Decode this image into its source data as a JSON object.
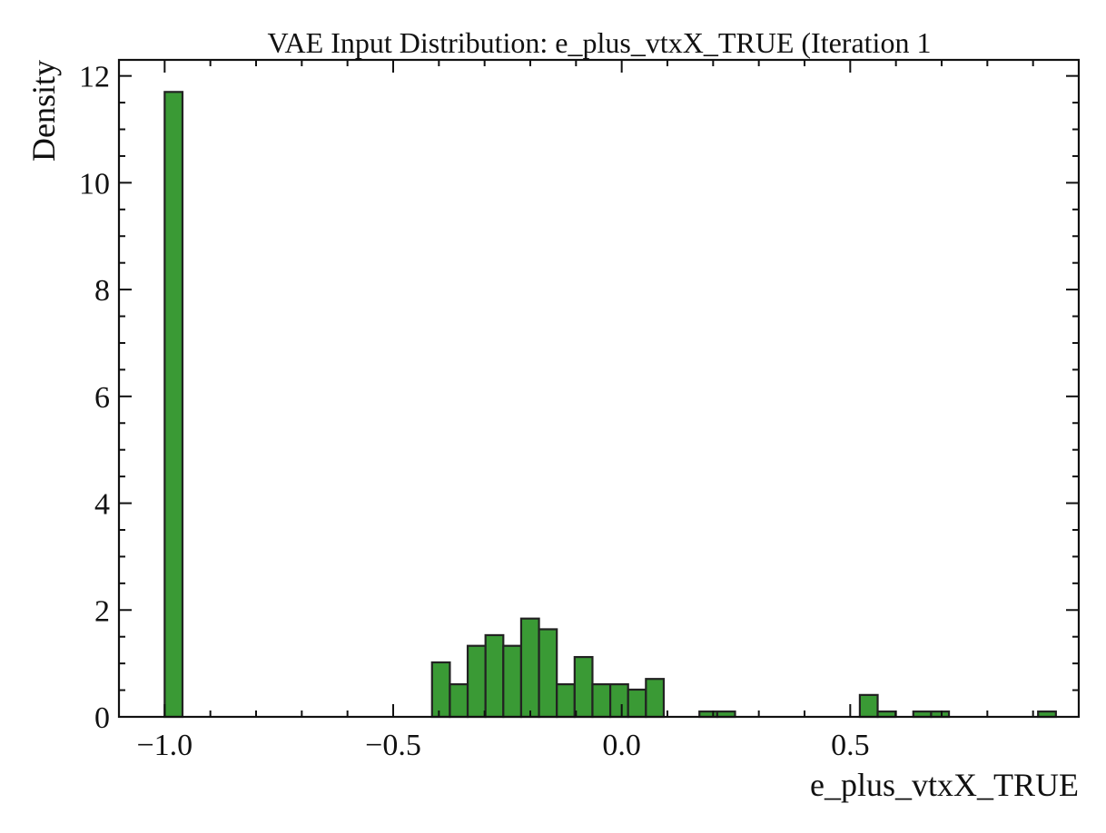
{
  "chart_data": {
    "type": "bar",
    "title": "VAE Input Distribution: e_plus_vtxX_TRUE (Iteration 1",
    "xlabel": "e_plus_vtxX_TRUE",
    "ylabel": "Density",
    "xlim": [
      -1.1,
      1.0
    ],
    "ylim": [
      0,
      12.3
    ],
    "xticks": [
      -1.0,
      -0.5,
      0.0,
      0.5
    ],
    "xtick_labels": [
      "−1.0",
      "−0.5",
      "0.0",
      "0.5"
    ],
    "yticks": [
      0,
      2,
      4,
      6,
      8,
      10,
      12
    ],
    "ytick_labels": [
      "0",
      "2",
      "4",
      "6",
      "8",
      "10",
      "12"
    ],
    "bin_edges": [
      -1.0,
      -0.961,
      -0.922,
      -0.883,
      -0.844,
      -0.805,
      -0.766,
      -0.727,
      -0.688,
      -0.649,
      -0.61,
      -0.571,
      -0.532,
      -0.493,
      -0.454,
      -0.415,
      -0.376,
      -0.337,
      -0.298,
      -0.259,
      -0.22,
      -0.181,
      -0.142,
      -0.103,
      -0.064,
      -0.025,
      0.014,
      0.053,
      0.092,
      0.131,
      0.17,
      0.209,
      0.248,
      0.287,
      0.326,
      0.365,
      0.404,
      0.443,
      0.482,
      0.521,
      0.56,
      0.599,
      0.638,
      0.677,
      0.716,
      0.755,
      0.794,
      0.833,
      0.872,
      0.911,
      0.95
    ],
    "values": [
      11.7,
      0,
      0,
      0,
      0,
      0,
      0,
      0,
      0,
      0,
      0,
      0,
      0,
      0,
      0,
      1.02,
      0.61,
      1.33,
      1.53,
      1.33,
      1.84,
      1.64,
      0.61,
      1.12,
      0.61,
      0.61,
      0.51,
      0.71,
      0,
      0,
      0.1,
      0.1,
      0,
      0,
      0,
      0,
      0,
      0,
      0,
      0.41,
      0.1,
      0,
      0.1,
      0.1,
      0,
      0,
      0,
      0,
      0,
      0.1
    ],
    "bar_color": "#3a9a35",
    "bar_edge_color": "#222222",
    "grid": false,
    "legend": "none"
  }
}
